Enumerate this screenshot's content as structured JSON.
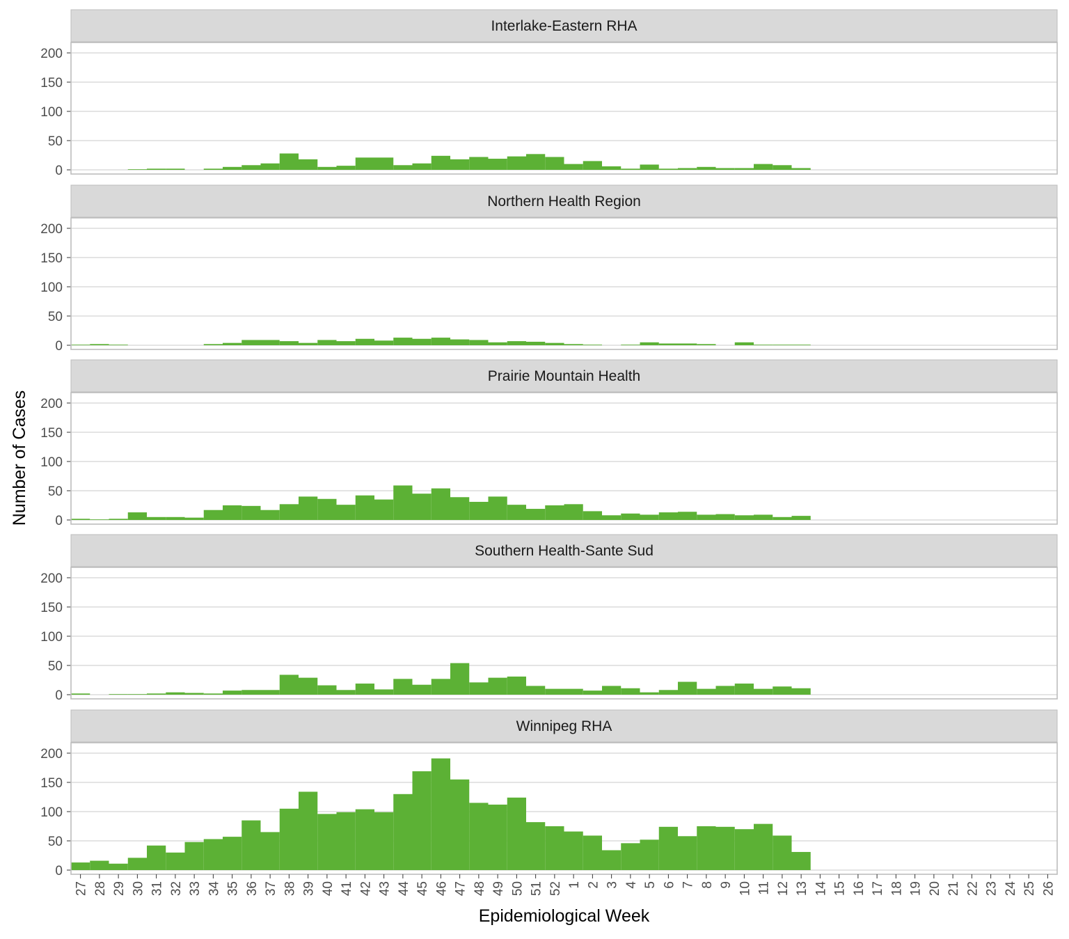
{
  "chart_data": {
    "type": "bar",
    "facet_layout": "stacked vertically, one panel per region, shared x axis",
    "xlabel": "Epidemiological Week",
    "ylabel": "Number of Cases",
    "ylim": [
      0,
      200
    ],
    "yticks": [
      0,
      50,
      100,
      150,
      200
    ],
    "grid": true,
    "categories": [
      "27",
      "28",
      "29",
      "30",
      "31",
      "32",
      "33",
      "34",
      "35",
      "36",
      "37",
      "38",
      "39",
      "40",
      "41",
      "42",
      "43",
      "44",
      "45",
      "46",
      "47",
      "48",
      "49",
      "50",
      "51",
      "52",
      "1",
      "2",
      "3",
      "4",
      "5",
      "6",
      "7",
      "8",
      "9",
      "10",
      "11",
      "12",
      "13",
      "14",
      "15",
      "16",
      "17",
      "18",
      "19",
      "20",
      "21",
      "22",
      "23",
      "24",
      "25",
      "26"
    ],
    "panels": [
      {
        "title": "Interlake-Eastern RHA",
        "values": [
          0,
          0,
          0,
          1,
          2,
          2,
          0,
          2,
          5,
          8,
          11,
          28,
          18,
          5,
          7,
          21,
          21,
          8,
          11,
          24,
          18,
          22,
          19,
          23,
          27,
          22,
          10,
          15,
          6,
          2,
          9,
          2,
          3,
          5,
          3,
          3,
          10,
          8,
          3,
          0,
          0,
          0,
          0,
          0,
          0,
          0,
          0,
          0,
          0,
          0,
          0,
          0
        ]
      },
      {
        "title": "Northern Health Region",
        "values": [
          1,
          2,
          1,
          0,
          0,
          0,
          0,
          2,
          4,
          9,
          9,
          7,
          4,
          9,
          7,
          11,
          8,
          13,
          11,
          13,
          10,
          9,
          5,
          7,
          6,
          4,
          2,
          1,
          0,
          1,
          5,
          3,
          3,
          2,
          0,
          5,
          1,
          1,
          1,
          0,
          0,
          0,
          0,
          0,
          0,
          0,
          0,
          0,
          0,
          0,
          0,
          0
        ]
      },
      {
        "title": "Prairie Mountain Health",
        "values": [
          2,
          1,
          2,
          13,
          5,
          5,
          4,
          17,
          25,
          24,
          17,
          27,
          40,
          36,
          26,
          42,
          35,
          59,
          45,
          54,
          39,
          31,
          40,
          26,
          19,
          25,
          27,
          15,
          8,
          11,
          9,
          13,
          14,
          9,
          10,
          8,
          9,
          5,
          7,
          0,
          0,
          0,
          0,
          0,
          0,
          0,
          0,
          0,
          0,
          0,
          0,
          0
        ]
      },
      {
        "title": "Southern Health-Sante Sud",
        "values": [
          2,
          0,
          1,
          1,
          2,
          4,
          3,
          2,
          7,
          8,
          8,
          34,
          29,
          16,
          8,
          19,
          9,
          27,
          17,
          27,
          54,
          21,
          29,
          31,
          15,
          10,
          10,
          7,
          15,
          11,
          4,
          8,
          22,
          10,
          15,
          19,
          10,
          14,
          11,
          0,
          0,
          0,
          0,
          0,
          0,
          0,
          0,
          0,
          0,
          0,
          0,
          0
        ]
      },
      {
        "title": "Winnipeg RHA",
        "values": [
          13,
          16,
          11,
          21,
          42,
          30,
          48,
          53,
          57,
          85,
          65,
          105,
          134,
          96,
          99,
          104,
          99,
          130,
          169,
          191,
          155,
          115,
          112,
          124,
          82,
          75,
          66,
          59,
          34,
          46,
          52,
          74,
          58,
          75,
          74,
          70,
          79,
          59,
          31,
          0,
          0,
          0,
          0,
          0,
          0,
          0,
          0,
          0,
          0,
          0,
          0,
          0
        ]
      }
    ],
    "bar_color": "#5cb135"
  }
}
